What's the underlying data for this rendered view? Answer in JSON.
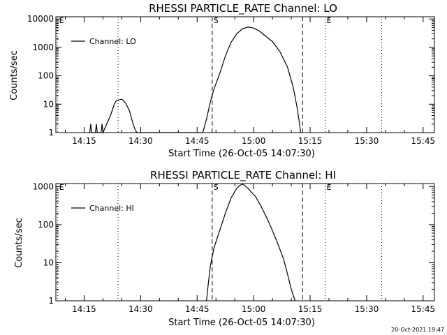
{
  "timestamp": "20-Oct-2021 19:47",
  "chart_data": [
    {
      "type": "line",
      "title": "RHESSI PARTICLE_RATE Channel: LO",
      "xlabel": "Start Time (26-Oct-05 14:07:30)",
      "ylabel": "Counts/sec",
      "yscale": "log",
      "ylim": [
        1,
        12000
      ],
      "xlim": [
        "14:07:30",
        "15:48:00"
      ],
      "xticks": [
        "14:15",
        "14:30",
        "14:45",
        "15:00",
        "15:15",
        "15:30",
        "15:45"
      ],
      "yticks": [
        "1",
        "10",
        "100",
        "1000",
        "10000"
      ],
      "legend": {
        "label": "Channel: LO",
        "position": "top-left"
      },
      "markers": [
        {
          "label": "E",
          "time": "14:08:00",
          "style": "dotted"
        },
        {
          "label": "",
          "time": "14:24:00",
          "style": "dotted"
        },
        {
          "label": "S",
          "time": "14:49:00",
          "style": "dashed"
        },
        {
          "label": "",
          "time": "15:13:00",
          "style": "dashed"
        },
        {
          "label": "E",
          "time": "15:19:00",
          "style": "dotted"
        },
        {
          "label": "",
          "time": "15:34:00",
          "style": "dotted"
        }
      ],
      "series": [
        {
          "name": "Channel: LO",
          "x": [
            "14:16:30",
            "14:16:45",
            "14:17:00",
            "14:18:00",
            "14:18:15",
            "14:18:30",
            "14:19:30",
            "14:19:45",
            "14:20:00",
            "14:21:00",
            "14:22:00",
            "14:23:00",
            "14:23:30",
            "14:24:00",
            "14:25:00",
            "14:25:30",
            "14:26:00",
            "14:27:00",
            "14:27:30",
            "14:28:00",
            "14:28:30",
            "14:29:00",
            "14:46:30",
            "14:47:30",
            "14:48:30",
            "14:49:30",
            "14:51:00",
            "14:52:30",
            "14:54:00",
            "14:55:30",
            "14:57:00",
            "14:58:30",
            "15:00:00",
            "15:01:30",
            "15:03:00",
            "15:05:00",
            "15:07:00",
            "15:09:00",
            "15:10:30",
            "15:11:30",
            "15:12:00",
            "15:12:30"
          ],
          "y": [
            1,
            2,
            1,
            1,
            2,
            1,
            1,
            2,
            1,
            2,
            4,
            10,
            13,
            14,
            15,
            13,
            11,
            6,
            3.5,
            2,
            1.3,
            1,
            1,
            3,
            12,
            35,
            120,
            500,
            1500,
            3000,
            4500,
            5200,
            4800,
            3800,
            2600,
            1600,
            700,
            200,
            40,
            8,
            3,
            1
          ]
        }
      ]
    },
    {
      "type": "line",
      "title": "RHESSI PARTICLE_RATE Channel: HI",
      "xlabel": "Start Time (26-Oct-05 14:07:30)",
      "ylabel": "Counts/sec",
      "yscale": "log",
      "ylim": [
        1,
        1200
      ],
      "xlim": [
        "14:07:30",
        "15:48:00"
      ],
      "xticks": [
        "14:15",
        "14:30",
        "14:45",
        "15:00",
        "15:15",
        "15:30",
        "15:45"
      ],
      "yticks": [
        "1",
        "10",
        "100",
        "1000"
      ],
      "legend": {
        "label": "Channel: HI",
        "position": "top-left"
      },
      "markers": [
        {
          "label": "E",
          "time": "14:08:00",
          "style": "dotted"
        },
        {
          "label": "",
          "time": "14:24:00",
          "style": "dotted"
        },
        {
          "label": "S",
          "time": "14:49:00",
          "style": "dashed"
        },
        {
          "label": "",
          "time": "15:13:00",
          "style": "dashed"
        },
        {
          "label": "E",
          "time": "15:19:00",
          "style": "dotted"
        },
        {
          "label": "",
          "time": "15:34:00",
          "style": "dotted"
        }
      ],
      "series": [
        {
          "name": "Channel: HI",
          "x": [
            "14:47:30",
            "14:48:00",
            "14:48:30",
            "14:49:30",
            "14:51:00",
            "14:52:30",
            "14:54:00",
            "14:55:30",
            "14:56:30",
            "14:57:00",
            "14:57:30",
            "14:58:30",
            "14:59:30",
            "15:00:30",
            "15:02:00",
            "15:03:30",
            "15:05:00",
            "15:06:30",
            "15:08:00",
            "15:09:00",
            "15:10:00",
            "15:11:00"
          ],
          "y": [
            1,
            3,
            8,
            25,
            70,
            200,
            500,
            900,
            1100,
            1150,
            1100,
            900,
            700,
            550,
            300,
            150,
            70,
            30,
            12,
            5,
            2,
            1
          ]
        }
      ]
    }
  ]
}
